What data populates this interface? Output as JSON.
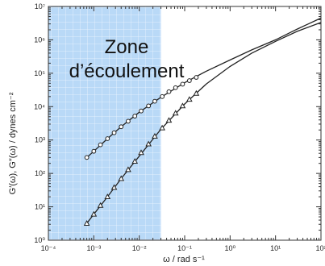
{
  "chart_data": {
    "type": "scatter",
    "title": "",
    "xlabel": "ω / rad s⁻¹",
    "ylabel": "G′(ω), G″(ω) / dynes cm⁻²",
    "x_scale": "log",
    "y_scale": "log",
    "xlim": [
      0.0001,
      100
    ],
    "ylim": [
      1,
      10000000
    ],
    "x_ticks": [
      "10⁻⁴",
      "10⁻³",
      "10⁻²",
      "10⁻¹",
      "10⁰",
      "10¹",
      "10²"
    ],
    "y_ticks": [
      "10⁰",
      "10¹",
      "10²",
      "10³",
      "10⁴",
      "10⁵",
      "10⁶",
      "10⁷"
    ],
    "grid": false,
    "annotation": {
      "text_lines": [
        "Zone",
        "d’écoulement"
      ],
      "x_range": [
        0.0001,
        0.03
      ],
      "fill": "#b9d9f7",
      "grid": true
    },
    "series": [
      {
        "marker": "circle",
        "points": [
          [
            0.0007,
            300
          ],
          [
            0.001,
            460
          ],
          [
            0.0014,
            720
          ],
          [
            0.002,
            1100
          ],
          [
            0.0028,
            1650
          ],
          [
            0.004,
            2500
          ],
          [
            0.0057,
            3650
          ],
          [
            0.008,
            5200
          ],
          [
            0.011,
            7400
          ],
          [
            0.016,
            10500
          ],
          [
            0.022,
            14500
          ],
          [
            0.032,
            20000
          ],
          [
            0.045,
            28000
          ],
          [
            0.063,
            37000
          ],
          [
            0.09,
            47000
          ],
          [
            0.127,
            60000
          ],
          [
            0.18,
            75000
          ]
        ],
        "curve": [
          [
            0.0007,
            300
          ],
          [
            0.001,
            460
          ],
          [
            0.002,
            1100
          ],
          [
            0.004,
            2500
          ],
          [
            0.01,
            6800
          ],
          [
            0.03,
            19000
          ],
          [
            0.1,
            52000
          ],
          [
            0.3,
            115000
          ],
          [
            1,
            250000
          ],
          [
            3,
            500000
          ],
          [
            10,
            1000000
          ],
          [
            30,
            2100000
          ],
          [
            100,
            4500000
          ]
        ]
      },
      {
        "marker": "triangle",
        "points": [
          [
            0.0007,
            3.2
          ],
          [
            0.001,
            6.0
          ],
          [
            0.0014,
            11
          ],
          [
            0.002,
            20
          ],
          [
            0.0028,
            38
          ],
          [
            0.004,
            70
          ],
          [
            0.0057,
            130
          ],
          [
            0.008,
            230
          ],
          [
            0.011,
            420
          ],
          [
            0.016,
            760
          ],
          [
            0.022,
            1300
          ],
          [
            0.032,
            2300
          ],
          [
            0.045,
            3900
          ],
          [
            0.063,
            6400
          ],
          [
            0.09,
            10500
          ],
          [
            0.127,
            16500
          ],
          [
            0.18,
            25000
          ]
        ],
        "curve": [
          [
            0.0007,
            3.2
          ],
          [
            0.001,
            6.0
          ],
          [
            0.002,
            20
          ],
          [
            0.004,
            70
          ],
          [
            0.01,
            330
          ],
          [
            0.03,
            2100
          ],
          [
            0.1,
            12000
          ],
          [
            0.3,
            48000
          ],
          [
            1,
            160000
          ],
          [
            3,
            400000
          ],
          [
            10,
            900000
          ],
          [
            30,
            1800000
          ],
          [
            100,
            3300000
          ]
        ]
      }
    ]
  }
}
